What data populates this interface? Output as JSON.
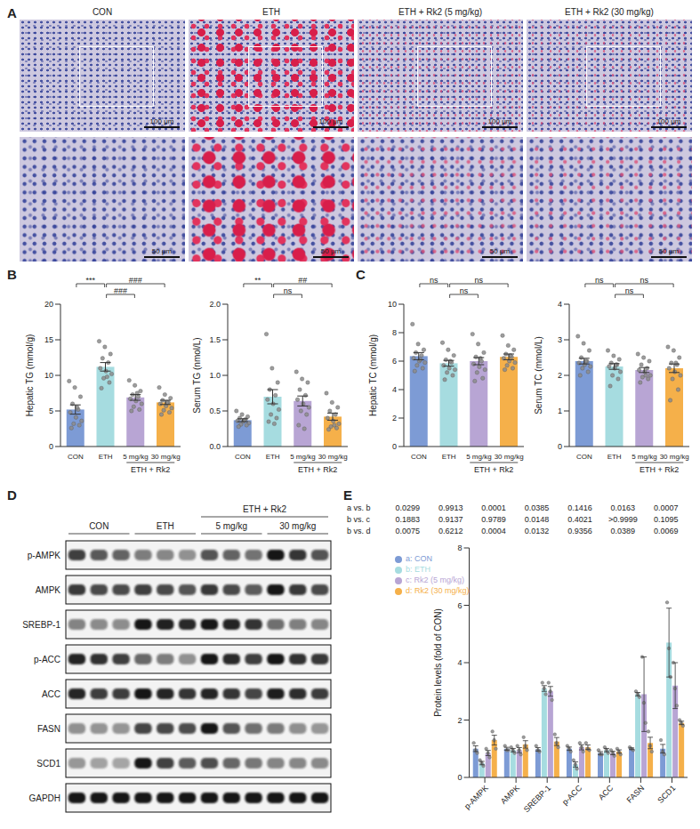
{
  "panel_labels": [
    "A",
    "B",
    "C",
    "D",
    "E"
  ],
  "histology": {
    "columns": [
      "CON",
      "ETH",
      "ETH + Rk2 (5 mg/kg)",
      "ETH + Rk2 (30 mg/kg)"
    ],
    "scale_bars": [
      "100 μm",
      "50 μm"
    ]
  },
  "blot": {
    "group_header": "ETH + Rk2",
    "groups": [
      "CON",
      "ETH",
      "5 mg/kg",
      "30 mg/kg"
    ],
    "header_groups": [
      "5 mg/kg",
      "30 mg/kg"
    ],
    "lanes_per_group": 3,
    "rows": [
      "p-AMPK",
      "AMPK",
      "SREBP-1",
      "p-ACC",
      "ACC",
      "FASN",
      "SCD1",
      "GAPDH"
    ]
  },
  "chart_data": [
    {
      "type": "bar",
      "y_label": "Hepatic TG (mmol/g)",
      "categories": [
        "CON",
        "ETH",
        "5 mg/kg",
        "30 mg/kg"
      ],
      "colors": [
        "#7d9bd5",
        "#a6dce0",
        "#b8a5d4",
        "#f5b04a"
      ],
      "values": [
        5.2,
        11.2,
        6.9,
        6.2
      ],
      "errors": [
        0.65,
        0.6,
        0.4,
        0.3
      ],
      "points": [
        [
          9.2,
          8.3,
          7.0,
          6.0,
          5.2,
          4.8,
          4.1,
          3.6,
          3.2,
          3.0,
          2.6,
          5.5
        ],
        [
          14.8,
          14.0,
          13.0,
          12.4,
          11.8,
          11.0,
          10.6,
          10.2,
          9.6,
          9.0,
          8.2,
          9.8
        ],
        [
          9.3,
          8.6,
          7.8,
          7.3,
          7.0,
          6.7,
          6.4,
          6.0,
          5.6,
          5.2,
          5.0,
          7.5
        ],
        [
          8.3,
          7.3,
          6.8,
          6.5,
          6.2,
          6.0,
          5.7,
          5.4,
          5.1,
          4.8,
          4.5,
          6.2
        ]
      ],
      "ylim": [
        0,
        20
      ],
      "yticks": [
        0,
        5,
        10,
        15,
        20
      ],
      "comparisons": [
        {
          "groups": [
            "CON",
            "ETH"
          ],
          "label": "***"
        },
        {
          "groups": [
            "ETH",
            "5 mg/kg"
          ],
          "label": "###"
        },
        {
          "groups": [
            "ETH",
            "30 mg/kg"
          ],
          "label": "###"
        }
      ],
      "category_group": {
        "label": "ETH + Rk2",
        "categories": [
          "5 mg/kg",
          "30 mg/kg"
        ]
      }
    },
    {
      "type": "bar",
      "y_label": "Serum TG (nmol/L)",
      "categories": [
        "CON",
        "ETH",
        "5 mg/kg",
        "30 mg/kg"
      ],
      "colors": [
        "#7d9bd5",
        "#a6dce0",
        "#b8a5d4",
        "#f5b04a"
      ],
      "values": [
        0.37,
        0.7,
        0.64,
        0.42
      ],
      "errors": [
        0.02,
        0.1,
        0.07,
        0.05
      ],
      "points": [
        [
          0.5,
          0.45,
          0.42,
          0.4,
          0.38,
          0.36,
          0.35,
          0.33,
          0.31,
          0.3,
          0.28,
          0.37
        ],
        [
          1.58,
          1.1,
          0.9,
          0.8,
          0.72,
          0.66,
          0.6,
          0.52,
          0.45,
          0.4,
          0.35,
          0.32
        ],
        [
          1.05,
          0.95,
          0.9,
          0.8,
          0.72,
          0.66,
          0.6,
          0.55,
          0.5,
          0.45,
          0.3,
          0.25
        ],
        [
          0.75,
          0.62,
          0.55,
          0.5,
          0.45,
          0.4,
          0.36,
          0.32,
          0.28,
          0.26,
          0.24,
          0.3
        ]
      ],
      "ylim": [
        0,
        2
      ],
      "yticks": [
        {
          "value": 0,
          "label": "0.0"
        },
        0.5,
        {
          "value": 1,
          "label": "1.0"
        },
        1.5,
        {
          "value": 2,
          "label": "2.0"
        }
      ],
      "comparisons": [
        {
          "groups": [
            "CON",
            "ETH"
          ],
          "label": "**"
        },
        {
          "groups": [
            "ETH",
            "5 mg/kg"
          ],
          "label": "ns"
        },
        {
          "groups": [
            "ETH",
            "30 mg/kg"
          ],
          "label": "##"
        }
      ],
      "category_group": {
        "label": "ETH + Rk2",
        "categories": [
          "5 mg/kg",
          "30 mg/kg"
        ]
      }
    },
    {
      "type": "bar",
      "y_label": "Hepatic TC (mmol/g)",
      "categories": [
        "CON",
        "ETH",
        "5 mg/kg",
        "30 mg/kg"
      ],
      "colors": [
        "#7d9bd5",
        "#a6dce0",
        "#b8a5d4",
        "#f5b04a"
      ],
      "values": [
        6.35,
        5.85,
        6.0,
        6.3
      ],
      "errors": [
        0.25,
        0.2,
        0.25,
        0.2
      ],
      "points": [
        [
          8.6,
          7.2,
          6.8,
          6.6,
          6.4,
          6.2,
          6.0,
          5.9,
          5.7,
          5.5,
          5.3,
          6.1
        ],
        [
          7.3,
          6.8,
          6.4,
          6.1,
          5.9,
          5.7,
          5.5,
          5.4,
          5.2,
          5.0,
          4.7,
          6.0
        ],
        [
          7.9,
          7.2,
          6.6,
          6.3,
          6.0,
          5.8,
          5.6,
          5.4,
          5.2,
          4.8,
          4.6,
          6.2
        ],
        [
          7.8,
          7.1,
          6.8,
          6.5,
          6.3,
          6.2,
          6.0,
          5.9,
          5.7,
          5.5,
          5.4,
          6.4
        ]
      ],
      "ylim": [
        0,
        10
      ],
      "yticks": [
        0,
        2,
        4,
        6,
        8,
        10
      ],
      "comparisons": [
        {
          "groups": [
            "CON",
            "ETH"
          ],
          "label": "ns"
        },
        {
          "groups": [
            "ETH",
            "5 mg/kg"
          ],
          "label": "ns"
        },
        {
          "groups": [
            "ETH",
            "30 mg/kg"
          ],
          "label": "ns"
        }
      ],
      "category_group": {
        "label": "ETH + Rk2",
        "categories": [
          "5 mg/kg",
          "30 mg/kg"
        ]
      }
    },
    {
      "type": "bar",
      "y_label": "Serum TC (mmol/L)",
      "categories": [
        "CON",
        "ETH",
        "5 mg/kg",
        "30 mg/kg"
      ],
      "colors": [
        "#7d9bd5",
        "#a6dce0",
        "#b8a5d4",
        "#f5b04a"
      ],
      "values": [
        2.4,
        2.25,
        2.15,
        2.2
      ],
      "errors": [
        0.08,
        0.08,
        0.07,
        0.12
      ],
      "points": [
        [
          3.1,
          2.9,
          2.7,
          2.5,
          2.4,
          2.35,
          2.3,
          2.25,
          2.2,
          2.1,
          2.0,
          2.4
        ],
        [
          2.7,
          2.55,
          2.45,
          2.35,
          2.3,
          2.25,
          2.2,
          2.1,
          2.0,
          1.9,
          1.7,
          2.3
        ],
        [
          2.6,
          2.5,
          2.4,
          2.3,
          2.2,
          2.15,
          2.1,
          2.0,
          1.95,
          1.9,
          1.8,
          2.0
        ],
        [
          2.8,
          2.7,
          2.5,
          2.35,
          2.3,
          2.2,
          2.1,
          2.0,
          1.9,
          1.6,
          1.3,
          2.35
        ]
      ],
      "ylim": [
        0,
        4
      ],
      "yticks": [
        0,
        1,
        2,
        3,
        4
      ],
      "comparisons": [
        {
          "groups": [
            "CON",
            "ETH"
          ],
          "label": "ns"
        },
        {
          "groups": [
            "ETH",
            "5 mg/kg"
          ],
          "label": "ns"
        },
        {
          "groups": [
            "ETH",
            "30 mg/kg"
          ],
          "label": "ns"
        }
      ],
      "category_group": {
        "label": "ETH + Rk2",
        "categories": [
          "5 mg/kg",
          "30 mg/kg"
        ]
      }
    },
    {
      "type": "bar",
      "y_label": "Protein levels (fold of CON)",
      "categories": [
        "p-AMPK",
        "AMPK",
        "SREBP-1",
        "p-ACC",
        "ACC",
        "FASN",
        "SCD1"
      ],
      "series": [
        {
          "name": "a: CON",
          "color": "#7d9bd5",
          "values": [
            1.0,
            1.0,
            0.98,
            1.0,
            0.85,
            1.0,
            1.0
          ],
          "errors": [
            0.1,
            0.05,
            0.06,
            0.06,
            0.05,
            0.03,
            0.15
          ],
          "points": [
            [
              1.2,
              0.95,
              0.85
            ],
            [
              1.1,
              0.95,
              0.95
            ],
            [
              1.1,
              0.95,
              0.9
            ],
            [
              1.1,
              1.0,
              0.9
            ],
            [
              0.95,
              0.8,
              0.8
            ],
            [
              1.05,
              1.0,
              0.95
            ],
            [
              1.3,
              0.9,
              0.8
            ]
          ]
        },
        {
          "name": "b: ETH",
          "color": "#a6dce0",
          "values": [
            0.5,
            0.95,
            3.1,
            0.45,
            0.95,
            2.9,
            4.7
          ],
          "errors": [
            0.06,
            0.06,
            0.1,
            0.09,
            0.06,
            0.06,
            1.2
          ],
          "points": [
            [
              0.6,
              0.5,
              0.4
            ],
            [
              1.05,
              0.95,
              0.85
            ],
            [
              3.3,
              3.1,
              2.9
            ],
            [
              0.6,
              0.45,
              0.3
            ],
            [
              1.05,
              0.95,
              0.85
            ],
            [
              3.0,
              2.9,
              2.8
            ],
            [
              6.1,
              4.5,
              3.5
            ]
          ]
        },
        {
          "name": "c: Rk2 (5 mg/kg)",
          "color": "#b8a5d4",
          "values": [
            0.85,
            0.95,
            3.0,
            1.05,
            0.85,
            2.9,
            3.2
          ],
          "errors": [
            0.09,
            0.09,
            0.17,
            0.09,
            0.06,
            1.3,
            0.8
          ],
          "points": [
            [
              1.0,
              0.85,
              0.7
            ],
            [
              1.1,
              0.95,
              0.8
            ],
            [
              3.3,
              3.0,
              2.7
            ],
            [
              1.2,
              1.05,
              0.9
            ],
            [
              0.95,
              0.85,
              0.75
            ],
            [
              4.2,
              2.6,
              1.9
            ],
            [
              4.0,
              3.1,
              2.5
            ]
          ]
        },
        {
          "name": "d: Rk2 (30 mg/kg)",
          "color": "#f5b04a",
          "values": [
            1.3,
            1.15,
            1.25,
            1.05,
            0.9,
            1.2,
            1.9
          ],
          "errors": [
            0.17,
            0.13,
            0.14,
            0.08,
            0.06,
            0.2,
            0.06
          ],
          "points": [
            [
              1.6,
              1.3,
              1.0
            ],
            [
              1.4,
              1.1,
              0.95
            ],
            [
              1.5,
              1.2,
              1.05
            ],
            [
              1.2,
              1.0,
              0.95
            ],
            [
              1.0,
              0.9,
              0.8
            ],
            [
              1.6,
              1.1,
              0.9
            ],
            [
              2.0,
              1.9,
              1.8
            ]
          ]
        }
      ],
      "ylim": [
        0,
        8
      ],
      "yticks": [
        0,
        2,
        4,
        6,
        8
      ],
      "legend": "top-left",
      "p_values": [
        {
          "label": "a vs. b",
          "values": [
            "0.0299",
            "0.9913",
            "0.0001",
            "0.0385",
            "0.1416",
            "0.0163",
            "0.0007"
          ]
        },
        {
          "label": "b vs. c",
          "values": [
            "0.1883",
            "0.9137",
            "0.9789",
            "0.0148",
            "0.4021",
            ">0.9999",
            "0.1095"
          ]
        },
        {
          "label": "b vs. d",
          "values": [
            "0.0075",
            "0.6212",
            "0.0004",
            "0.0132",
            "0.9356",
            "0.0389",
            "0.0069"
          ]
        }
      ]
    }
  ]
}
